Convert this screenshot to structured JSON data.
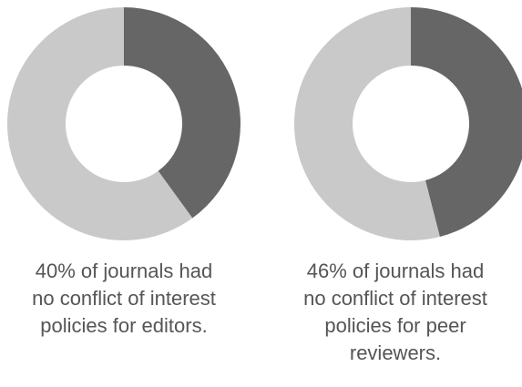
{
  "chart_data": [
    {
      "type": "pie",
      "donut": true,
      "slices": [
        {
          "label": "no conflict of interest policies",
          "value": 40,
          "color": "#666666"
        },
        {
          "label": "other",
          "value": 60,
          "color": "#c9c9c9"
        }
      ],
      "caption_lines": [
        "40% of journals had",
        "no conflict of interest",
        "policies for editors."
      ]
    },
    {
      "type": "pie",
      "donut": true,
      "slices": [
        {
          "label": "no conflict of interest policies",
          "value": 46,
          "color": "#666666"
        },
        {
          "label": "other",
          "value": 54,
          "color": "#c9c9c9"
        }
      ],
      "caption_lines": [
        "46% of journals had",
        "no conflict of interest",
        "policies for peer",
        "reviewers."
      ]
    }
  ]
}
